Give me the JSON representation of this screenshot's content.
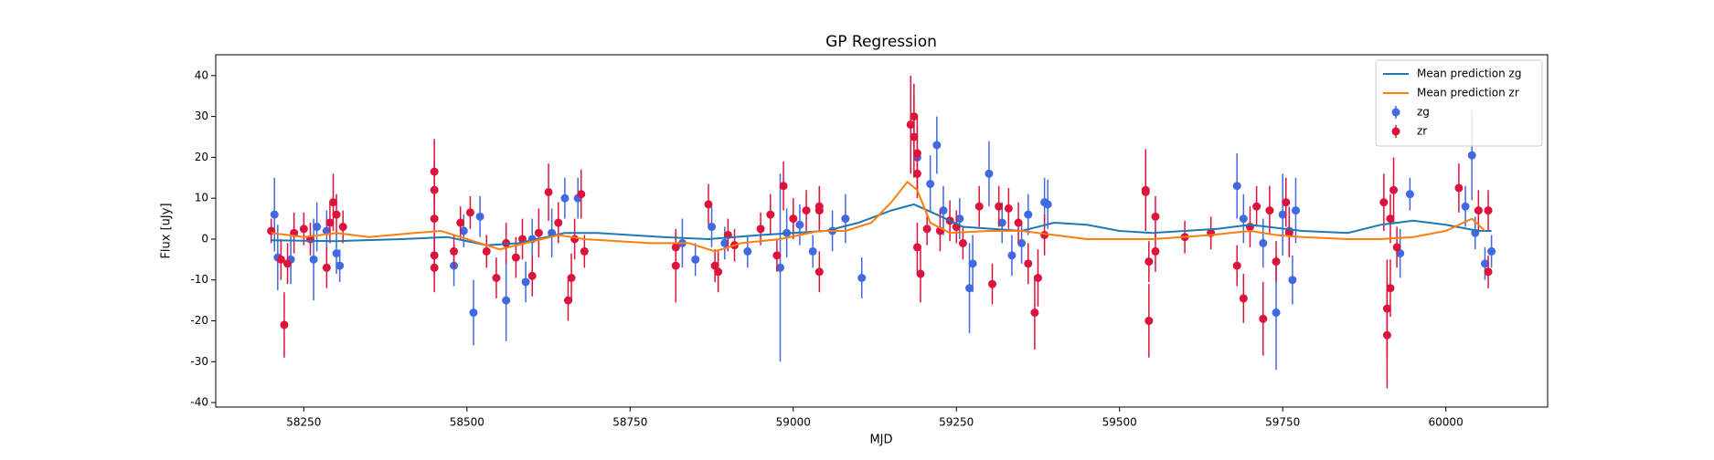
{
  "chart_data": {
    "type": "errorbar_line",
    "title": "GP Regression",
    "xlabel": "MJD",
    "ylabel": "Flux [uJy]",
    "xlim": [
      58115,
      60156
    ],
    "ylim": [
      -41.1,
      45.1
    ],
    "xticks": [
      58250,
      58500,
      58750,
      59000,
      59250,
      59500,
      59750,
      60000
    ],
    "yticks": [
      -40,
      -30,
      -20,
      -10,
      0,
      10,
      20,
      30,
      40
    ],
    "legend": "upper right",
    "lines": [
      {
        "name": "Mean prediction zg",
        "color": "#1f77b4",
        "x": [
          58200,
          58300,
          58400,
          58470,
          58530,
          58580,
          58650,
          58700,
          58800,
          58870,
          58950,
          59000,
          59050,
          59100,
          59150,
          59185,
          59220,
          59260,
          59350,
          59400,
          59450,
          59500,
          59550,
          59650,
          59700,
          59780,
          59850,
          59900,
          59950,
          60000,
          60050,
          60070
        ],
        "values": [
          -0.3,
          -0.5,
          0,
          0.5,
          -1.5,
          -1,
          1.5,
          1.5,
          0.5,
          0,
          1,
          1.5,
          2,
          4,
          7,
          8.5,
          6,
          3,
          2,
          4,
          3.5,
          2,
          1.5,
          2.5,
          3.5,
          2,
          1.5,
          3.5,
          4.5,
          3.5,
          2,
          2
        ]
      },
      {
        "name": "Mean prediction zr",
        "color": "#ff7f0e",
        "x": [
          58200,
          58250,
          58300,
          58350,
          58420,
          58460,
          58510,
          58550,
          58590,
          58640,
          58680,
          58780,
          58840,
          58880,
          58920,
          58980,
          59040,
          59080,
          59120,
          59150,
          59175,
          59190,
          59210,
          59240,
          59300,
          59350,
          59400,
          59450,
          59550,
          59640,
          59700,
          59740,
          59780,
          59850,
          59900,
          59950,
          60000,
          60040,
          60060
        ],
        "values": [
          1.5,
          0.5,
          1.5,
          0.5,
          1.5,
          2,
          -0.5,
          -2.5,
          -1,
          1,
          0,
          -1,
          -1,
          -3,
          -1,
          0,
          2,
          2,
          4,
          9,
          14,
          12,
          4,
          1.5,
          2,
          2,
          1,
          0,
          0,
          1,
          2,
          1,
          0.5,
          0,
          0,
          0.5,
          2,
          5,
          2
        ]
      }
    ],
    "points": [
      {
        "name": "zg",
        "color": "#4169e1",
        "x": [
          58205,
          58210,
          58230,
          58265,
          58270,
          58285,
          58300,
          58305,
          58480,
          58495,
          58510,
          58520,
          58560,
          58590,
          58600,
          58630,
          58650,
          58670,
          58830,
          58850,
          58875,
          58895,
          58930,
          58980,
          58990,
          59010,
          59030,
          59060,
          59080,
          59105,
          59190,
          59210,
          59220,
          59230,
          59255,
          59270,
          59275,
          59300,
          59320,
          59335,
          59350,
          59360,
          59385,
          59390,
          59680,
          59690,
          59720,
          59740,
          59750,
          59760,
          59765,
          59770,
          59930,
          59945,
          60030,
          60040,
          60045,
          60060,
          60070
        ],
        "values": [
          6,
          -4.5,
          -5,
          -5,
          3,
          2,
          -3.5,
          -6.5,
          -6.5,
          2,
          -18,
          5.5,
          -15,
          -10.5,
          0,
          1.5,
          10,
          10,
          -1,
          -5,
          3,
          -1,
          -3,
          -7,
          1.5,
          3.5,
          -3,
          2,
          5,
          -9.5,
          20,
          13.5,
          23,
          7,
          5,
          -12,
          -6,
          16,
          4,
          -4,
          -1,
          6,
          9,
          8.5,
          13,
          5,
          -1,
          -18,
          6,
          2,
          -10,
          7,
          -3.5,
          11,
          8,
          20.5,
          1.5,
          -6,
          -3
        ],
        "errors": [
          9,
          8,
          6,
          10,
          6,
          5,
          5,
          4,
          5,
          4,
          8,
          5,
          10,
          5,
          5,
          6,
          5,
          5,
          6,
          4,
          5,
          4,
          4,
          23,
          6,
          5,
          4,
          5,
          6,
          5,
          8,
          7,
          7,
          6,
          5,
          11,
          7,
          8,
          5,
          5,
          5,
          5,
          6,
          6,
          8,
          6,
          6,
          14,
          10,
          6,
          6,
          8,
          6,
          4,
          5,
          11,
          4,
          4,
          4
        ]
      },
      {
        "name": "zr",
        "color": "#dc143c",
        "x": [
          58200,
          58215,
          58220,
          58225,
          58235,
          58250,
          58260,
          58285,
          58290,
          58295,
          58300,
          58310,
          58450,
          58450,
          58450,
          58450,
          58450,
          58480,
          58490,
          58505,
          58530,
          58545,
          58560,
          58575,
          58585,
          58600,
          58610,
          58625,
          58640,
          58655,
          58660,
          58665,
          58675,
          58680,
          58820,
          58820,
          58870,
          58880,
          58885,
          58900,
          58910,
          58950,
          58965,
          58975,
          58985,
          59000,
          59020,
          59040,
          59040,
          59040,
          59180,
          59185,
          59185,
          59190,
          59190,
          59190,
          59195,
          59205,
          59225,
          59240,
          59250,
          59260,
          59285,
          59305,
          59315,
          59330,
          59345,
          59360,
          59370,
          59375,
          59385,
          59540,
          59540,
          59545,
          59545,
          59555,
          59555,
          59600,
          59640,
          59680,
          59690,
          59700,
          59710,
          59720,
          59730,
          59740,
          59755,
          59760,
          59905,
          59910,
          59910,
          59915,
          59915,
          59920,
          59925,
          60020,
          60050,
          60065,
          60065
        ],
        "values": [
          2,
          -5,
          -21,
          -6,
          1.5,
          2.5,
          0,
          -7,
          4,
          9,
          6,
          3,
          16.5,
          12,
          5,
          -7,
          -4,
          -3,
          4,
          6.5,
          -3,
          -9.5,
          -1,
          -4.5,
          0,
          -9,
          1.5,
          11.5,
          4,
          -15,
          -9.5,
          0,
          11,
          -3,
          -2,
          -6.5,
          8.5,
          -6.5,
          -8,
          1,
          -1.5,
          2.5,
          6,
          -4,
          13,
          5,
          7,
          7,
          -8,
          8,
          28,
          25,
          30,
          21,
          16,
          -2,
          -8.5,
          2.5,
          2,
          4.5,
          3,
          -1,
          8,
          -11,
          8,
          7.5,
          4,
          -6,
          -18,
          -9.5,
          1,
          12,
          11.5,
          -5.5,
          -20,
          5.5,
          -3,
          0.5,
          1.5,
          -6.5,
          -14.5,
          3,
          8,
          -19.5,
          7,
          -5.5,
          9,
          1.5,
          9,
          -23.5,
          -17,
          -12,
          5,
          12,
          -2,
          12.5,
          7,
          7,
          -8
        ],
        "errors": [
          3,
          5,
          8,
          5,
          5,
          4,
          4,
          5,
          5,
          7,
          5,
          4,
          8,
          7,
          6,
          6,
          5,
          4,
          4,
          4,
          4,
          5,
          5,
          5,
          5,
          5,
          6,
          7,
          5,
          5,
          6,
          5,
          6,
          4,
          4,
          9,
          5,
          4,
          5,
          4,
          4,
          4,
          5,
          4,
          6,
          5,
          5,
          5,
          5,
          5,
          12,
          10,
          8,
          9,
          6,
          6,
          7,
          4,
          5,
          5,
          4,
          4,
          5,
          5,
          5,
          5,
          5,
          5,
          9,
          7,
          5,
          10,
          9,
          5,
          9,
          5,
          5,
          4,
          4,
          5,
          6,
          5,
          5,
          9,
          6,
          5,
          6,
          6,
          7,
          13,
          12,
          7,
          6,
          8,
          5,
          6,
          5,
          5,
          4
        ]
      }
    ]
  }
}
